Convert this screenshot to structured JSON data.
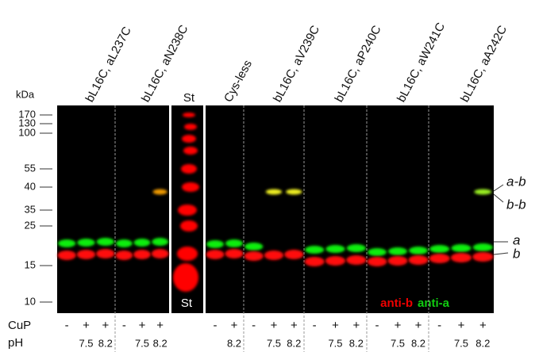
{
  "unit": "kDa",
  "markers": [
    "170",
    "130",
    "100",
    "55",
    "40",
    "35",
    "25",
    "15",
    "10"
  ],
  "standard_lane": "St",
  "groups": [
    {
      "label": "bL16C, aL237C",
      "cup": [
        "-",
        "+",
        "+"
      ],
      "ph": [
        null,
        "7.5",
        "8.2"
      ]
    },
    {
      "label": "bL16C, aN238C",
      "cup": [
        "-",
        "+",
        "+"
      ],
      "ph": [
        null,
        "7.5",
        "8.2"
      ]
    },
    {
      "label": "Cys-less",
      "cup": [
        "-",
        "+"
      ],
      "ph": [
        null,
        "8.2"
      ]
    },
    {
      "label": "bL16C, aV239C",
      "cup": [
        "-",
        "+",
        "+"
      ],
      "ph": [
        null,
        "7.5",
        "8.2"
      ]
    },
    {
      "label": "bL16C, aP240C",
      "cup": [
        "-",
        "+",
        "+"
      ],
      "ph": [
        null,
        "7.5",
        "8.2"
      ]
    },
    {
      "label": "bL16C, aW241C",
      "cup": [
        "-",
        "+",
        "+"
      ],
      "ph": [
        null,
        "7.5",
        "8.2"
      ]
    },
    {
      "label": "bL16C, aA242C",
      "cup": [
        "-",
        "+",
        "+"
      ],
      "ph": [
        null,
        "7.5",
        "8.2"
      ]
    }
  ],
  "band_labels": [
    "a-b",
    "b-b",
    "a",
    "b"
  ],
  "legend": [
    "anti-b",
    "anti-a"
  ],
  "row_labels": [
    "CuP",
    "pH"
  ]
}
